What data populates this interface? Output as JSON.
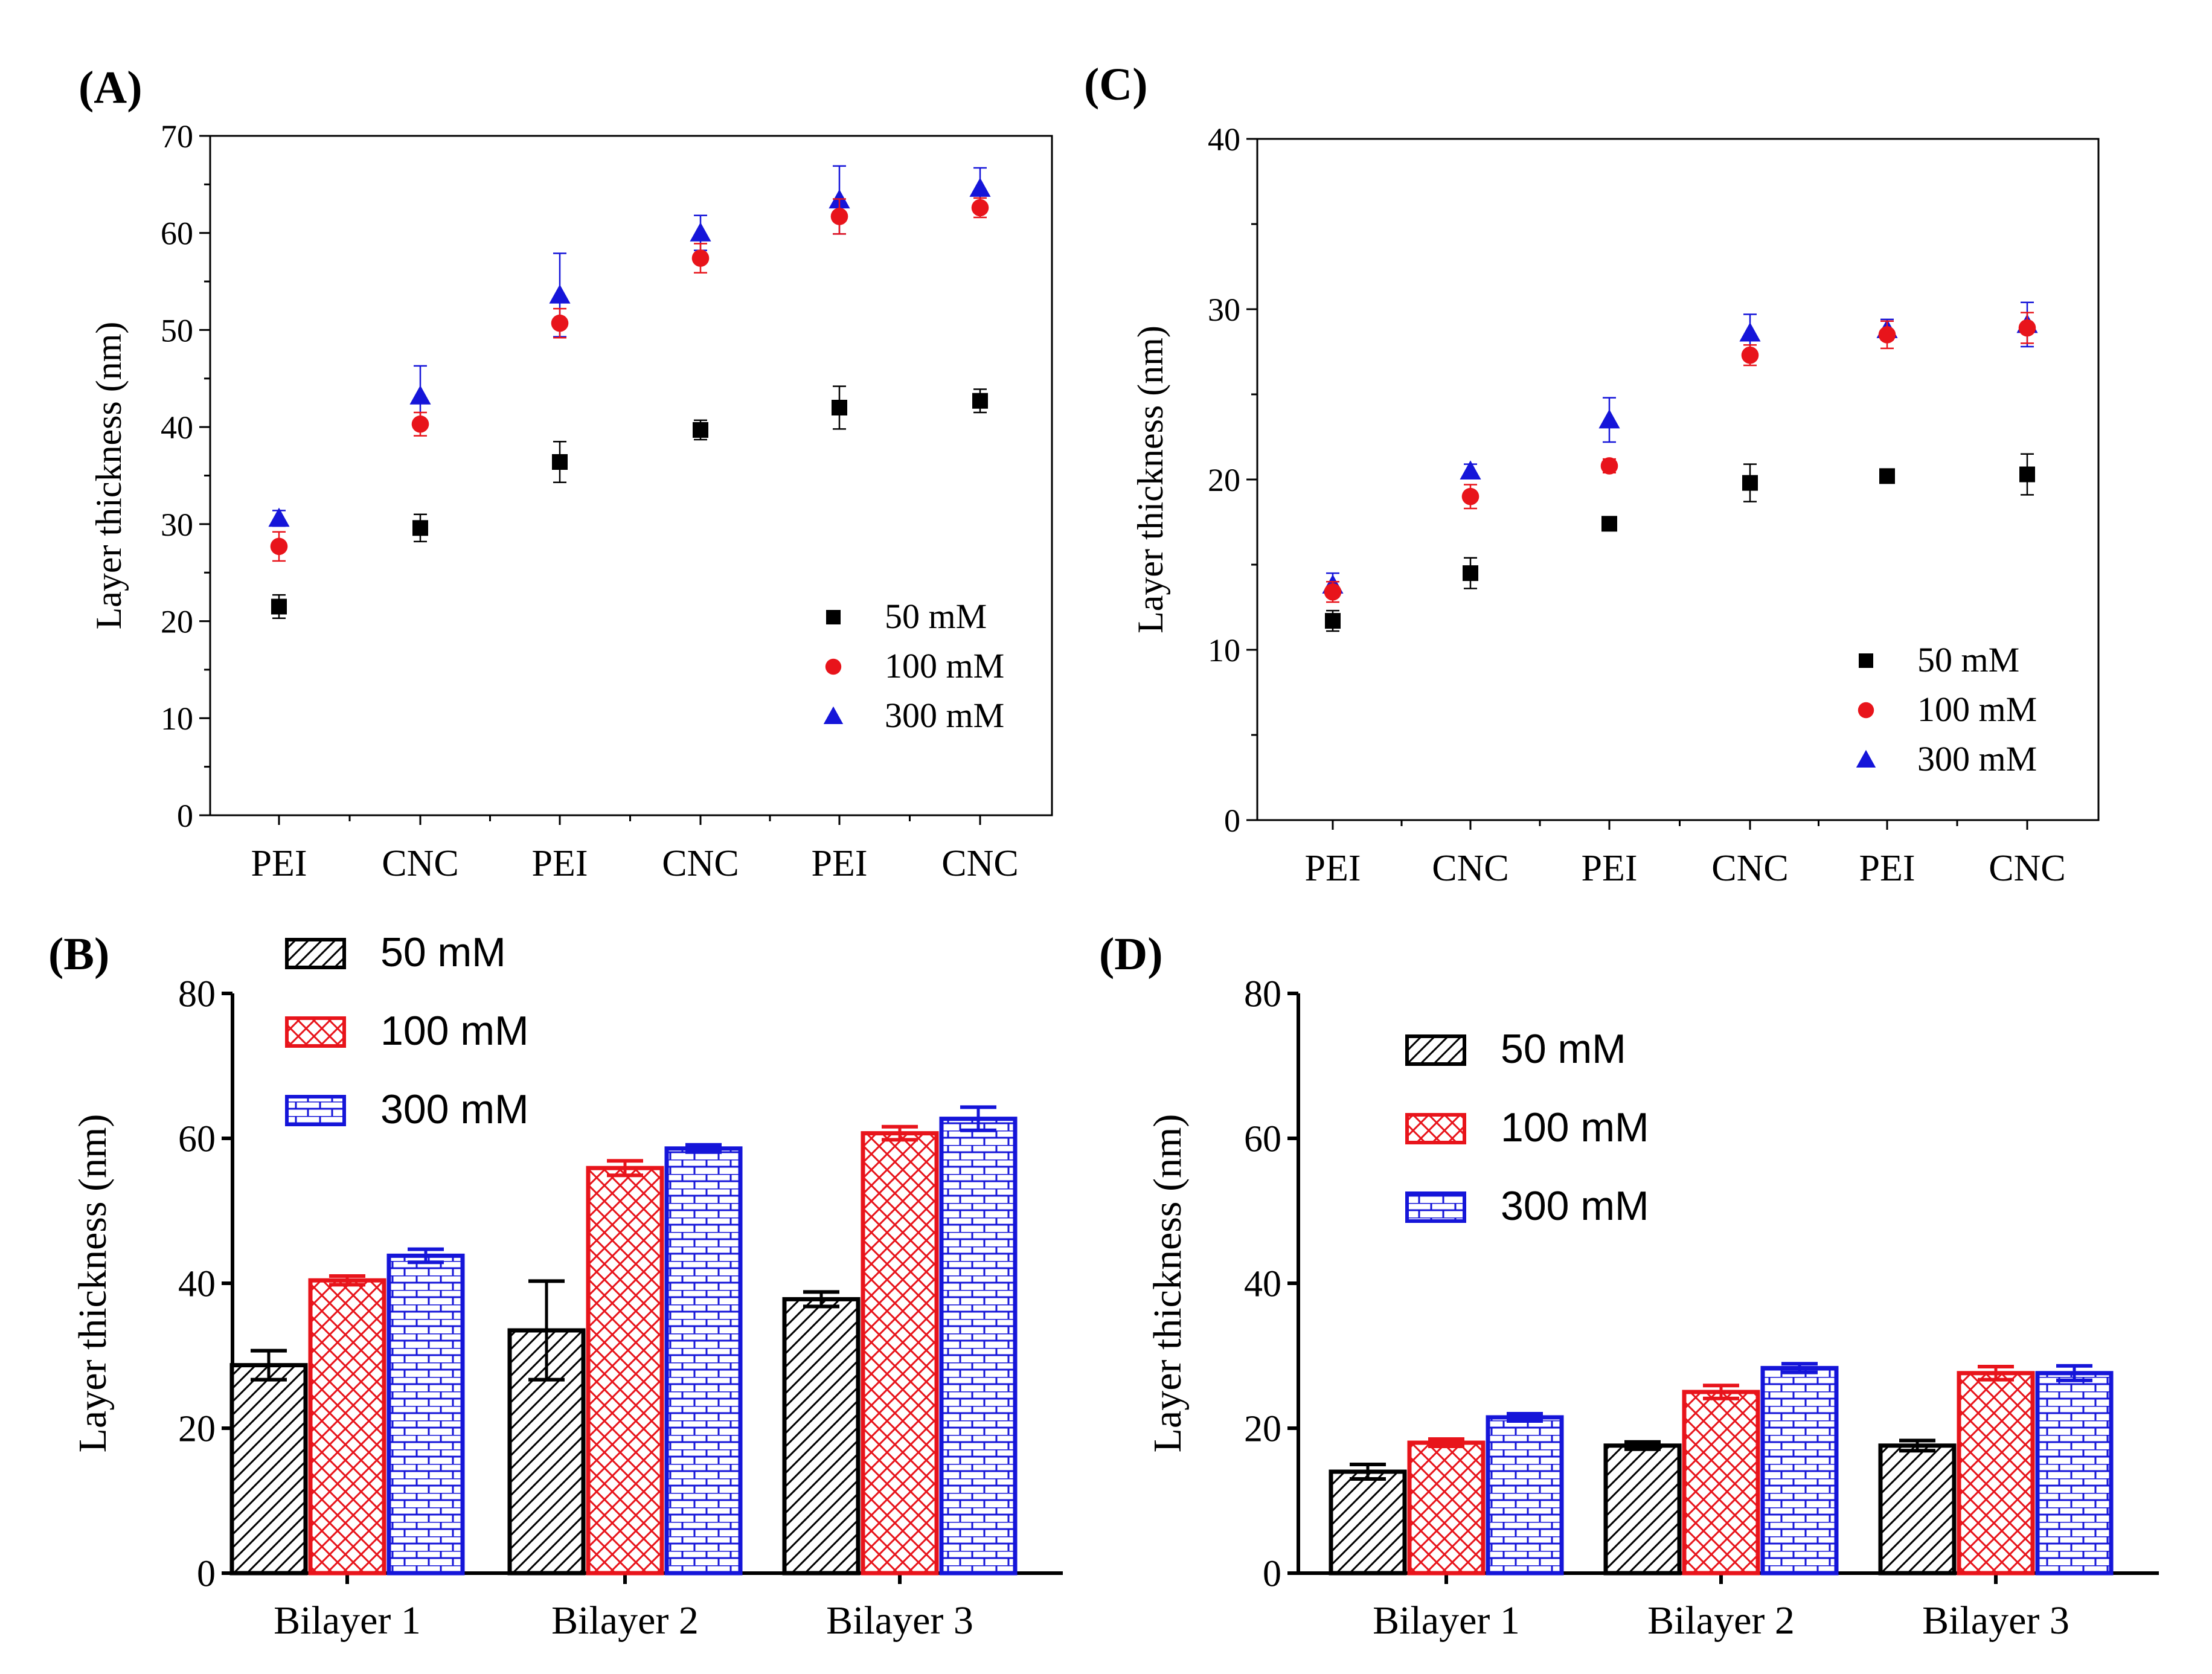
{
  "panel_labels": {
    "A": "(A)",
    "B": "(B)",
    "C": "(C)",
    "D": "(D)"
  },
  "chart_data": [
    {
      "id": "A",
      "type": "scatter",
      "label": "(A)",
      "title": "",
      "xlabel": "",
      "ylabel": "Layer thickness (nm)",
      "categories": [
        "PEI",
        "CNC",
        "PEI",
        "CNC",
        "PEI",
        "CNC"
      ],
      "ylim": [
        0,
        70
      ],
      "yticks": [
        0,
        10,
        20,
        30,
        40,
        50,
        60,
        70
      ],
      "legend_position": "bottom-right",
      "series": [
        {
          "name": "50 mM",
          "marker": "square",
          "color": "#000000",
          "values": [
            21.5,
            29.6,
            36.4,
            39.7,
            42.0,
            42.7
          ],
          "errors": [
            1.2,
            1.4,
            2.1,
            1.0,
            2.2,
            1.2
          ]
        },
        {
          "name": "100 mM",
          "marker": "circle",
          "color": "#e8141b",
          "values": [
            27.7,
            40.3,
            50.7,
            57.4,
            61.7,
            62.6
          ],
          "errors": [
            1.5,
            1.2,
            1.5,
            1.5,
            1.8,
            1.0
          ]
        },
        {
          "name": "300 mM",
          "marker": "triangle",
          "color": "#1515d9",
          "values": [
            30.6,
            43.2,
            53.6,
            60.0,
            63.4,
            64.6
          ],
          "errors": [
            0.8,
            3.1,
            4.3,
            1.8,
            3.5,
            2.1
          ]
        }
      ]
    },
    {
      "id": "C",
      "type": "scatter",
      "label": "(C)",
      "title": "",
      "xlabel": "",
      "ylabel": "Layer thickness (nm)",
      "categories": [
        "PEI",
        "CNC",
        "PEI",
        "CNC",
        "PEI",
        "CNC"
      ],
      "ylim": [
        0,
        40
      ],
      "yticks": [
        0,
        10,
        20,
        30,
        40
      ],
      "legend_position": "bottom-right",
      "series": [
        {
          "name": "50 mM",
          "marker": "square",
          "color": "#000000",
          "values": [
            11.7,
            14.5,
            17.4,
            19.8,
            20.2,
            20.3
          ],
          "errors": [
            0.6,
            0.9,
            0.4,
            1.1,
            0.4,
            1.2
          ]
        },
        {
          "name": "100 mM",
          "marker": "circle",
          "color": "#e8141b",
          "values": [
            13.4,
            19.0,
            20.8,
            27.3,
            28.5,
            28.9
          ],
          "errors": [
            0.6,
            0.7,
            0.4,
            0.6,
            0.8,
            0.9
          ]
        },
        {
          "name": "300 mM",
          "marker": "triangle",
          "color": "#1515d9",
          "values": [
            13.8,
            20.5,
            23.5,
            28.6,
            28.8,
            29.1
          ],
          "errors": [
            0.7,
            0.4,
            1.3,
            1.1,
            0.6,
            1.3
          ]
        }
      ]
    },
    {
      "id": "B",
      "type": "bar",
      "label": "(B)",
      "title": "",
      "xlabel": "",
      "ylabel": "Layer thickness (nm)",
      "categories": [
        "Bilayer 1",
        "Bilayer 2",
        "Bilayer 3"
      ],
      "ylim": [
        0,
        80
      ],
      "yticks": [
        0,
        20,
        40,
        60,
        80
      ],
      "legend_position": "top-left",
      "series": [
        {
          "name": "50 mM",
          "pattern": "diagonal",
          "color": "#000000",
          "values": [
            28.7,
            33.5,
            37.8
          ],
          "errors": [
            2.0,
            6.8,
            1.0
          ]
        },
        {
          "name": "100 mM",
          "pattern": "crosshatch",
          "color": "#e8141b",
          "values": [
            40.4,
            55.9,
            60.7
          ],
          "errors": [
            0.6,
            1.0,
            0.9
          ]
        },
        {
          "name": "300 mM",
          "pattern": "brick",
          "color": "#1515d9",
          "values": [
            43.8,
            58.6,
            62.7
          ],
          "errors": [
            0.9,
            0.5,
            1.6
          ]
        }
      ]
    },
    {
      "id": "D",
      "type": "bar",
      "label": "(D)",
      "title": "",
      "xlabel": "",
      "ylabel": "Layer thickness (nm)",
      "categories": [
        "Bilayer 1",
        "Bilayer 2",
        "Bilayer 3"
      ],
      "ylim": [
        0,
        80
      ],
      "yticks": [
        0,
        20,
        40,
        60,
        80
      ],
      "legend_position": "top-left",
      "series": [
        {
          "name": "50 mM",
          "pattern": "diagonal",
          "color": "#000000",
          "values": [
            14.0,
            17.6,
            17.6
          ],
          "errors": [
            1.0,
            0.5,
            0.7
          ]
        },
        {
          "name": "100 mM",
          "pattern": "crosshatch",
          "color": "#e8141b",
          "values": [
            18.0,
            25.0,
            27.6
          ],
          "errors": [
            0.5,
            0.9,
            0.9
          ]
        },
        {
          "name": "300 mM",
          "pattern": "brick",
          "color": "#1515d9",
          "values": [
            21.5,
            28.3,
            27.6
          ],
          "errors": [
            0.5,
            0.6,
            1.0
          ]
        }
      ]
    }
  ]
}
